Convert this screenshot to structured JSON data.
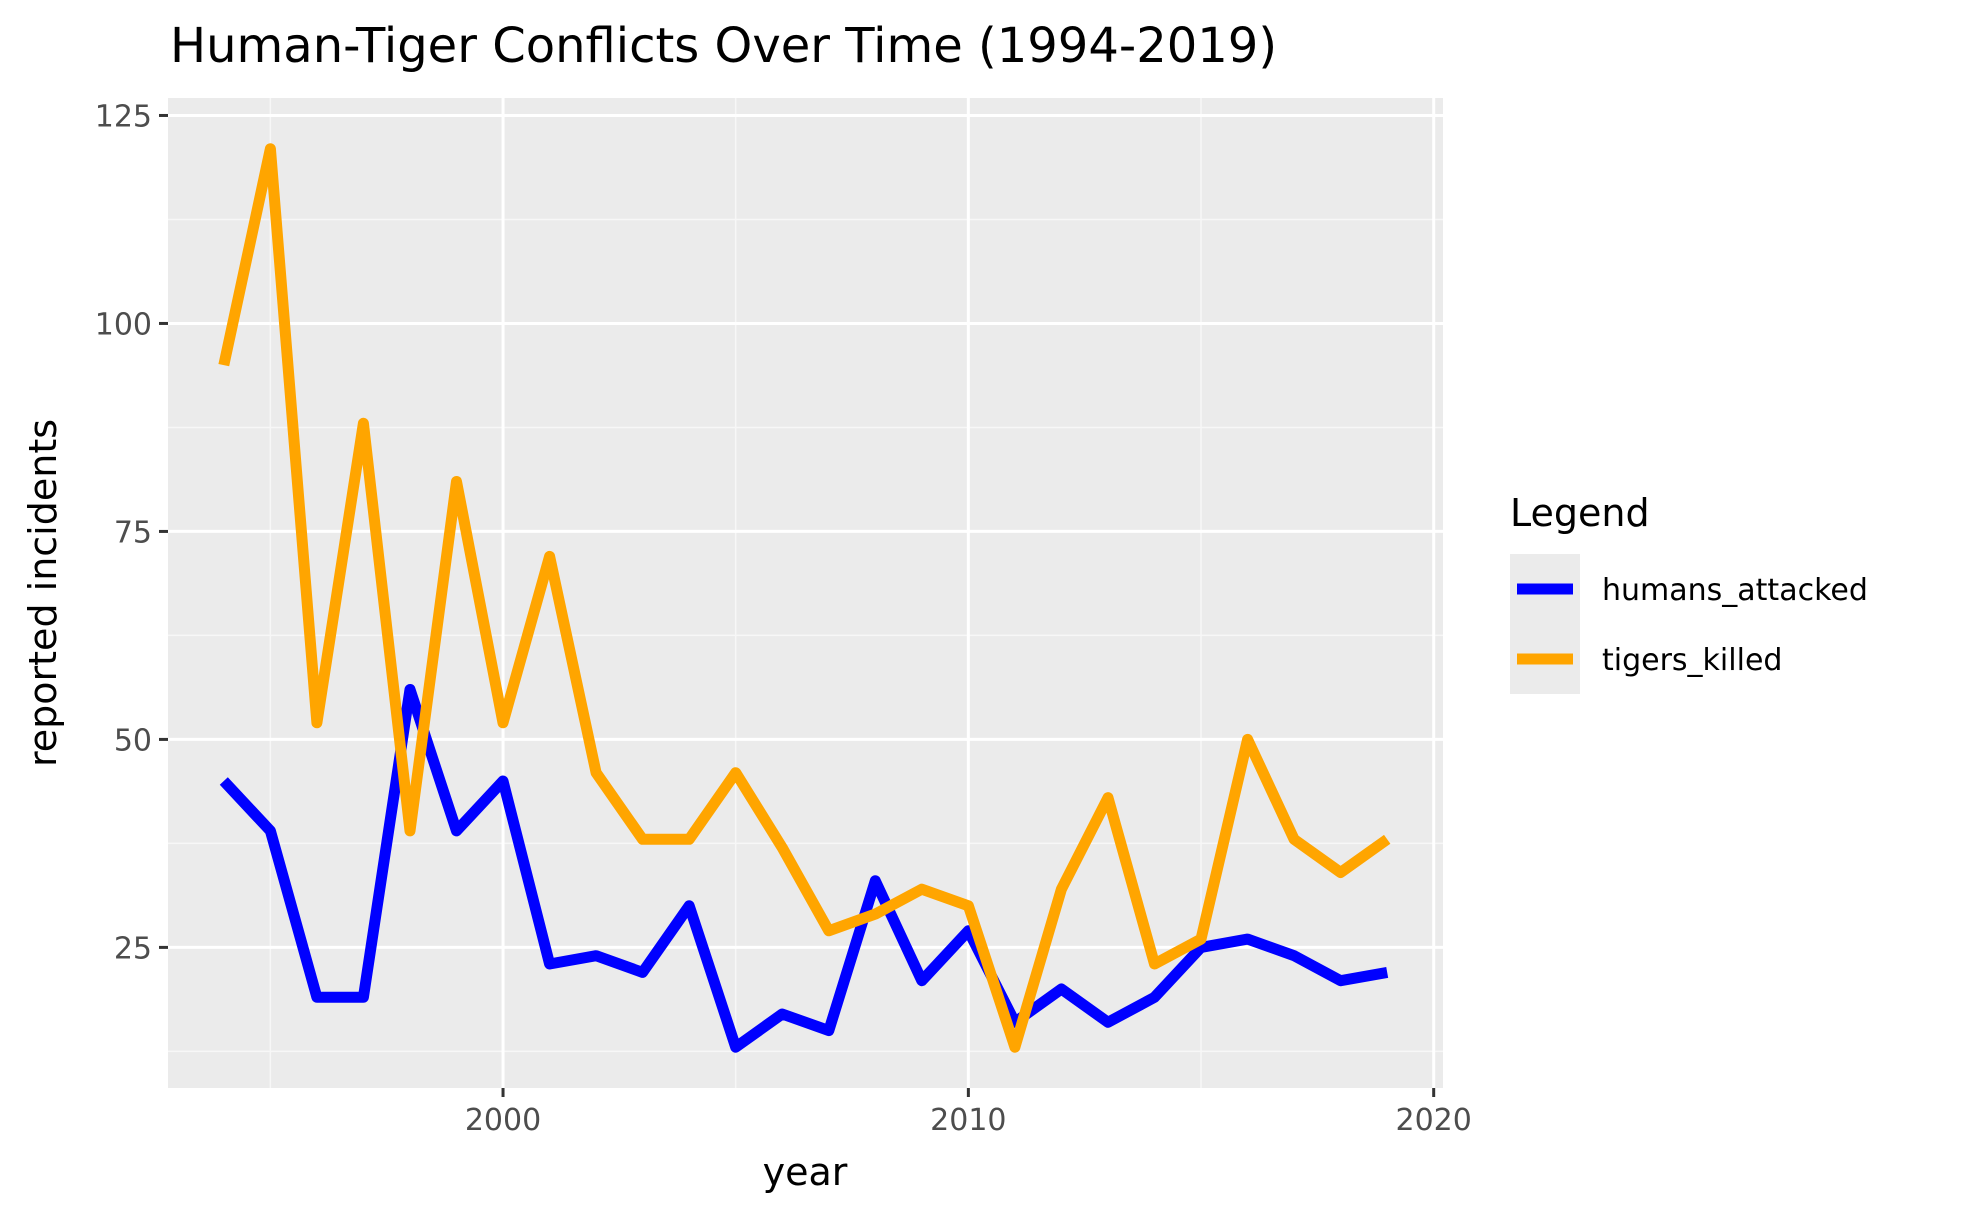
{
  "chart_data": {
    "type": "line",
    "title": "Human-Tiger Conflicts Over Time (1994-2019)",
    "xlabel": "year",
    "ylabel": "reported incidents",
    "xlim": [
      1992.8,
      2020.2
    ],
    "ylim": [
      8.1,
      127.1
    ],
    "x_ticks": [
      2000,
      2010,
      2020
    ],
    "y_ticks": [
      25,
      50,
      75,
      100,
      125
    ],
    "grid": true,
    "legend": {
      "title": "Legend",
      "position": "right"
    },
    "x": [
      1994,
      1995,
      1996,
      1997,
      1998,
      1999,
      2000,
      2001,
      2002,
      2003,
      2004,
      2005,
      2006,
      2007,
      2008,
      2009,
      2010,
      2011,
      2012,
      2013,
      2014,
      2015,
      2016,
      2017,
      2018,
      2019
    ],
    "series": [
      {
        "name": "humans_attacked",
        "color": "#0000ff",
        "values": [
          45,
          39,
          19,
          19,
          56,
          39,
          45,
          23,
          24,
          22,
          30,
          13,
          17,
          15,
          33,
          21,
          27,
          16,
          20,
          16,
          19,
          25,
          26,
          24,
          21,
          22
        ]
      },
      {
        "name": "tigers_killed",
        "color": "#ffa500",
        "values": [
          95,
          121,
          52,
          88,
          39,
          81,
          52,
          72,
          46,
          38,
          38,
          46,
          37,
          27,
          29,
          32,
          30,
          13,
          32,
          43,
          23,
          26,
          50,
          38,
          34,
          38
        ]
      }
    ]
  },
  "colors": {
    "panel_background": "#ebebeb",
    "grid_major": "#ffffff",
    "grid_minor": "#f7f7f7"
  }
}
